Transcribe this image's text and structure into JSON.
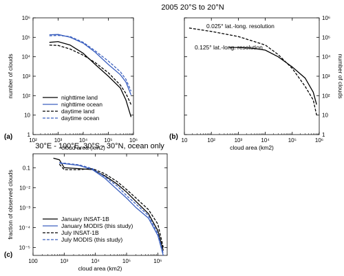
{
  "figure": {
    "title_top": "2005 20°S to 20°N",
    "title_bottom": "30°E - 100°E, 30°S - 30°N, ocean only"
  },
  "chart_data": [
    {
      "id": "a",
      "type": "line",
      "panel_label": "(a)",
      "xlabel": "cloud area (km2)",
      "ylabel": "number of clouds",
      "xscale": "log",
      "yscale": "log",
      "xlim": [
        100,
        1000000
      ],
      "ylim": [
        1,
        1000000
      ],
      "x_ticks": [
        "10²",
        "10³",
        "10⁴",
        "10⁵",
        "10⁶"
      ],
      "y_ticks": [
        "1",
        "10",
        "10²",
        "10³",
        "10⁴",
        "10⁵",
        "10⁶"
      ],
      "legend_position": "bottom-left",
      "series": [
        {
          "name": "nighttime land",
          "color": "#000000",
          "dash": "solid",
          "x": [
            450,
            1000,
            3000,
            10000,
            30000,
            100000,
            300000,
            500000,
            800000
          ],
          "y": [
            55000,
            60000,
            40000,
            15000,
            4000,
            1000,
            250,
            60,
            8
          ]
        },
        {
          "name": "nighttime ocean",
          "color": "#3a5fbf",
          "dash": "solid",
          "x": [
            450,
            1000,
            3000,
            10000,
            30000,
            100000,
            300000,
            500000,
            800000
          ],
          "y": [
            135000,
            140000,
            100000,
            50000,
            17000,
            4000,
            1200,
            500,
            110
          ]
        },
        {
          "name": "daytime land",
          "color": "#000000",
          "dash": "dashed",
          "x": [
            450,
            1000,
            3000,
            10000,
            30000,
            100000,
            300000,
            500000,
            800000
          ],
          "y": [
            40000,
            38000,
            25000,
            12000,
            5000,
            1500,
            350,
            130,
            35
          ]
        },
        {
          "name": "daytime ocean",
          "color": "#3a5fbf",
          "dash": "dashed",
          "x": [
            450,
            1000,
            3000,
            10000,
            30000,
            100000,
            300000,
            500000,
            800000
          ],
          "y": [
            120000,
            125000,
            110000,
            55000,
            20000,
            6000,
            1700,
            700,
            170
          ]
        }
      ]
    },
    {
      "id": "b",
      "type": "line",
      "panel_label": "(b)",
      "xlabel": "cloud area (km2)",
      "ylabel": "number of clouds",
      "xscale": "log",
      "yscale": "log",
      "xlim": [
        10,
        1000000
      ],
      "ylim": [
        1,
        1000000
      ],
      "x_ticks": [
        "10",
        "10²",
        "10³",
        "10⁴",
        "10⁵",
        "10⁶"
      ],
      "y_ticks": [
        "1",
        "10",
        "10²",
        "10³",
        "10⁴",
        "10⁵",
        "10⁶"
      ],
      "series": [
        {
          "name": "0.025° lat.-long. resolution",
          "color": "#000000",
          "dash": "dashed",
          "x": [
            15,
            100,
            1000,
            10000,
            30000,
            100000,
            300000,
            600000,
            800000
          ],
          "y": [
            300000,
            200000,
            110000,
            40000,
            13000,
            2500,
            300,
            60,
            10
          ]
        },
        {
          "name": "0.125° lat.-long. resolution",
          "color": "#000000",
          "dash": "solid",
          "x": [
            450,
            1000,
            3000,
            10000,
            30000,
            100000,
            300000,
            600000,
            800000
          ],
          "y": [
            30000,
            30000,
            28000,
            22000,
            10000,
            3000,
            800,
            150,
            35
          ]
        }
      ]
    },
    {
      "id": "c",
      "type": "line",
      "panel_label": "(c)",
      "xlabel": "cloud area (km2)",
      "ylabel": "fraction of observed clouds",
      "xscale": "log",
      "yscale": "log",
      "xlim": [
        100,
        2000000
      ],
      "ylim": [
        4e-06,
        0.5
      ],
      "x_ticks": [
        "100",
        "10³",
        "10⁴",
        "10⁵",
        "10⁶"
      ],
      "y_ticks": [
        "10⁻⁵",
        "10⁻⁴",
        "10⁻³",
        "10⁻²",
        "0.1"
      ],
      "legend_position": "bottom-left",
      "series": [
        {
          "name": "January INSAT-1B",
          "color": "#000000",
          "dash": "solid",
          "x": [
            450,
            700,
            1000,
            3000,
            8000,
            20000,
            50000,
            100000,
            200000,
            500000,
            1000000,
            1500000
          ],
          "y": [
            0.3,
            0.25,
            0.1,
            0.09,
            0.08,
            0.04,
            0.015,
            0.006,
            0.002,
            0.0005,
            7e-05,
            7e-06
          ]
        },
        {
          "name": "January MODIS (this study)",
          "color": "#3a5fbf",
          "dash": "solid",
          "x": [
            700,
            1000,
            3000,
            8000,
            20000,
            50000,
            100000,
            200000,
            500000,
            1000000,
            1500000
          ],
          "y": [
            0.17,
            0.16,
            0.13,
            0.08,
            0.03,
            0.008,
            0.003,
            0.001,
            0.0003,
            4e-05,
            4e-06
          ]
        },
        {
          "name": "July INSAT-1B",
          "color": "#000000",
          "dash": "dashed",
          "x": [
            700,
            1000,
            3000,
            8000,
            20000,
            50000,
            100000,
            200000,
            500000,
            1000000,
            1500000
          ],
          "y": [
            0.15,
            0.08,
            0.08,
            0.09,
            0.05,
            0.02,
            0.008,
            0.003,
            0.0008,
            0.00015,
            1e-05
          ]
        },
        {
          "name": "July MODIS (this study)",
          "color": "#3a5fbf",
          "dash": "dashed",
          "x": [
            700,
            1000,
            3000,
            8000,
            20000,
            50000,
            100000,
            200000,
            500000,
            1000000,
            1500000
          ],
          "y": [
            0.18,
            0.17,
            0.14,
            0.09,
            0.035,
            0.012,
            0.004,
            0.0015,
            0.0004,
            5e-05,
            5e-06
          ]
        }
      ]
    }
  ]
}
